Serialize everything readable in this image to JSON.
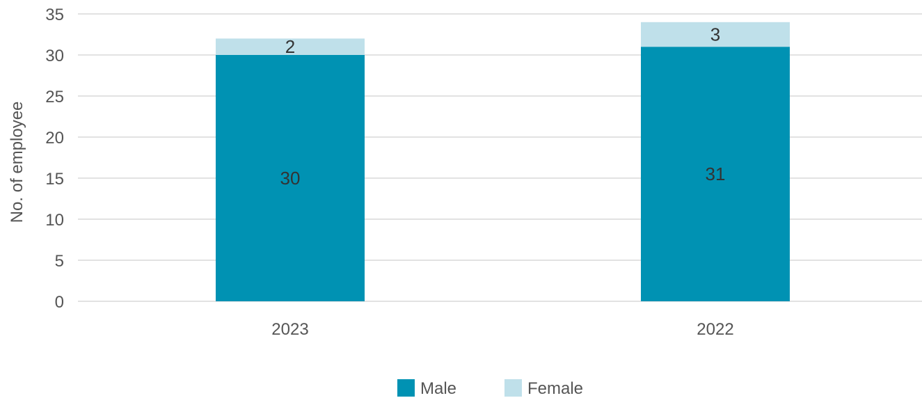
{
  "chart_data": {
    "type": "bar",
    "stacked": true,
    "categories": [
      "2023",
      "2022"
    ],
    "series": [
      {
        "name": "Male",
        "values": [
          30,
          31
        ],
        "color": "#0092b3"
      },
      {
        "name": "Female",
        "values": [
          2,
          3
        ],
        "color": "#bfe0ea"
      }
    ],
    "ylabel": "No. of employee",
    "xlabel": "",
    "ylim": [
      0,
      35
    ],
    "yticks": [
      0,
      5,
      10,
      15,
      20,
      25,
      30,
      35
    ],
    "grid": true,
    "legend": "bottom-center"
  }
}
